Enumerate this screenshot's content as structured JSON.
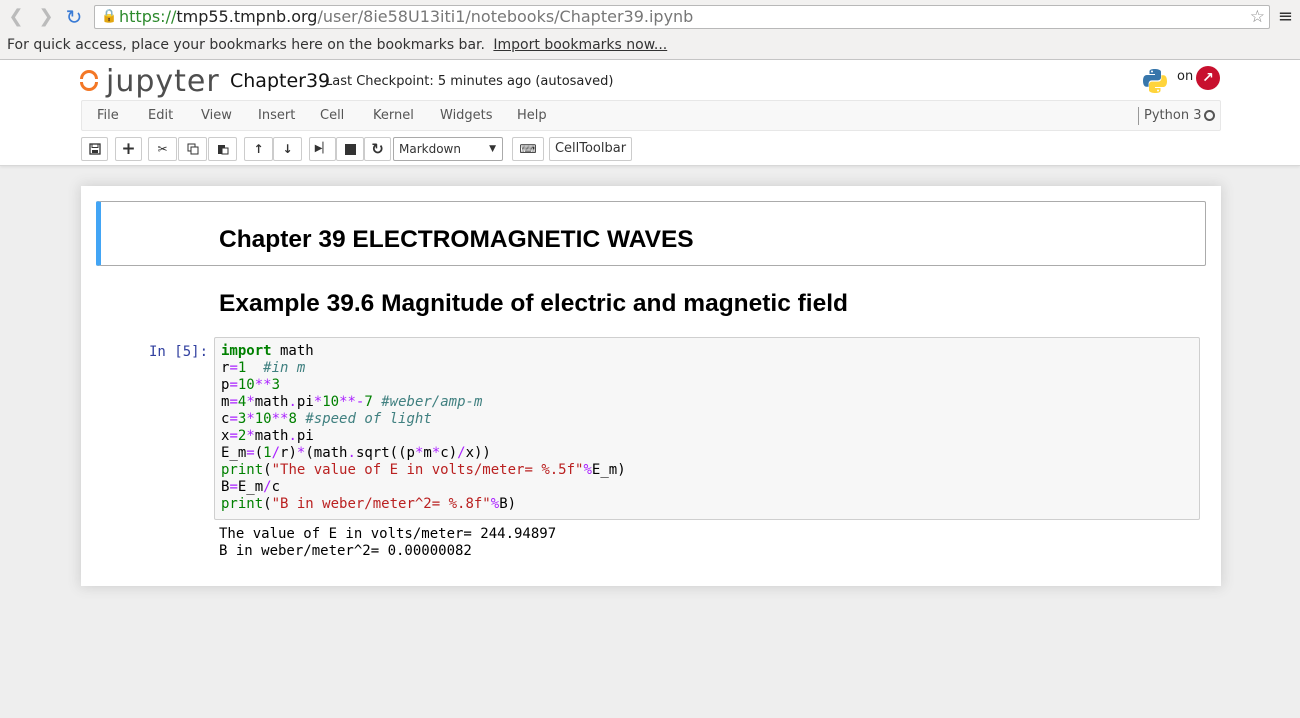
{
  "browser": {
    "url_scheme": "https://",
    "url_host": "tmp55.tmpnb.org",
    "url_path": "/user/8ie58U13iti1/notebooks/Chapter39.ipynb",
    "bookmarks_text": "For quick access, place your bookmarks here on the bookmarks bar.",
    "bookmarks_link": "Import bookmarks now..."
  },
  "header": {
    "logo_text": "jupyter",
    "notebook_name": "Chapter39",
    "checkpoint": "Last Checkpoint: 5 minutes ago (autosaved)",
    "on_text": "on"
  },
  "menu": {
    "items": [
      "File",
      "Edit",
      "View",
      "Insert",
      "Cell",
      "Kernel",
      "Widgets",
      "Help"
    ],
    "kernel": "Python 3"
  },
  "toolbar": {
    "cell_type": "Markdown",
    "celltoolbar_label": "CellToolbar"
  },
  "cells": {
    "heading1": "Chapter 39 ELECTROMAGNETIC WAVES",
    "heading2": "Example 39.6 Magnitude of electric and magnetic field",
    "prompt": "In [5]:",
    "output_line1": "The value of E in volts/meter= 244.94897",
    "output_line2": "B in weber/meter^2= 0.00000082"
  },
  "colors": {
    "accent_selected": "#42a5f5",
    "jupyter_orange": "#f37726",
    "prompt_blue": "#303f9f"
  }
}
